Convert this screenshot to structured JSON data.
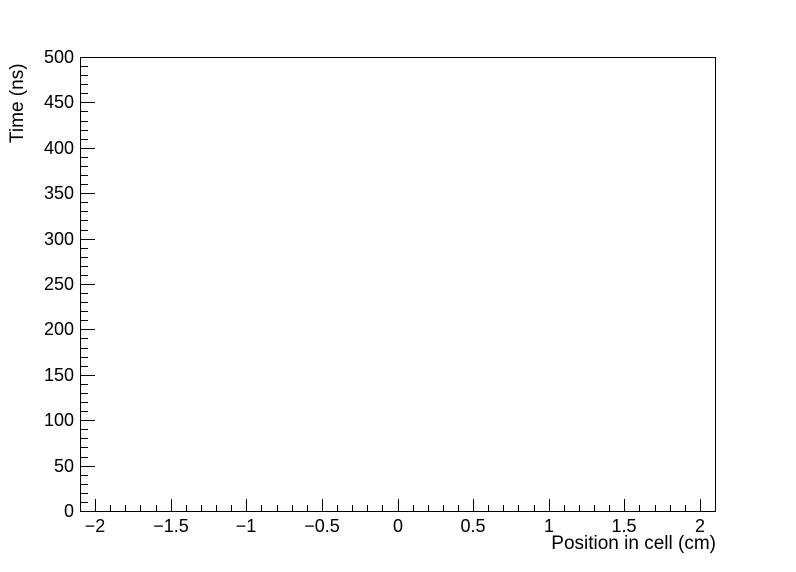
{
  "background_color": "#ffffff",
  "axis_color": "#000000",
  "chart_data": {
    "type": "scatter",
    "title": "",
    "xlabel": "Position in cell (cm)",
    "ylabel": "Time (ns)",
    "xlim": [
      -2.1,
      2.1
    ],
    "ylim": [
      0,
      500
    ],
    "x_major_ticks": [
      -2,
      -1.5,
      -1,
      -0.5,
      0,
      0.5,
      1,
      1.5,
      2
    ],
    "x_tick_labels": [
      "−2",
      "−1.5",
      "−1",
      "−0.5",
      "0",
      "0.5",
      "1",
      "1.5",
      "2"
    ],
    "x_minor_step": 0.1,
    "y_major_ticks": [
      0,
      50,
      100,
      150,
      200,
      250,
      300,
      350,
      400,
      450,
      500
    ],
    "y_tick_labels": [
      "0",
      "50",
      "100",
      "150",
      "200",
      "250",
      "300",
      "350",
      "400",
      "450",
      "500"
    ],
    "y_minor_step": 10,
    "grid": false,
    "legend": null,
    "series": []
  }
}
